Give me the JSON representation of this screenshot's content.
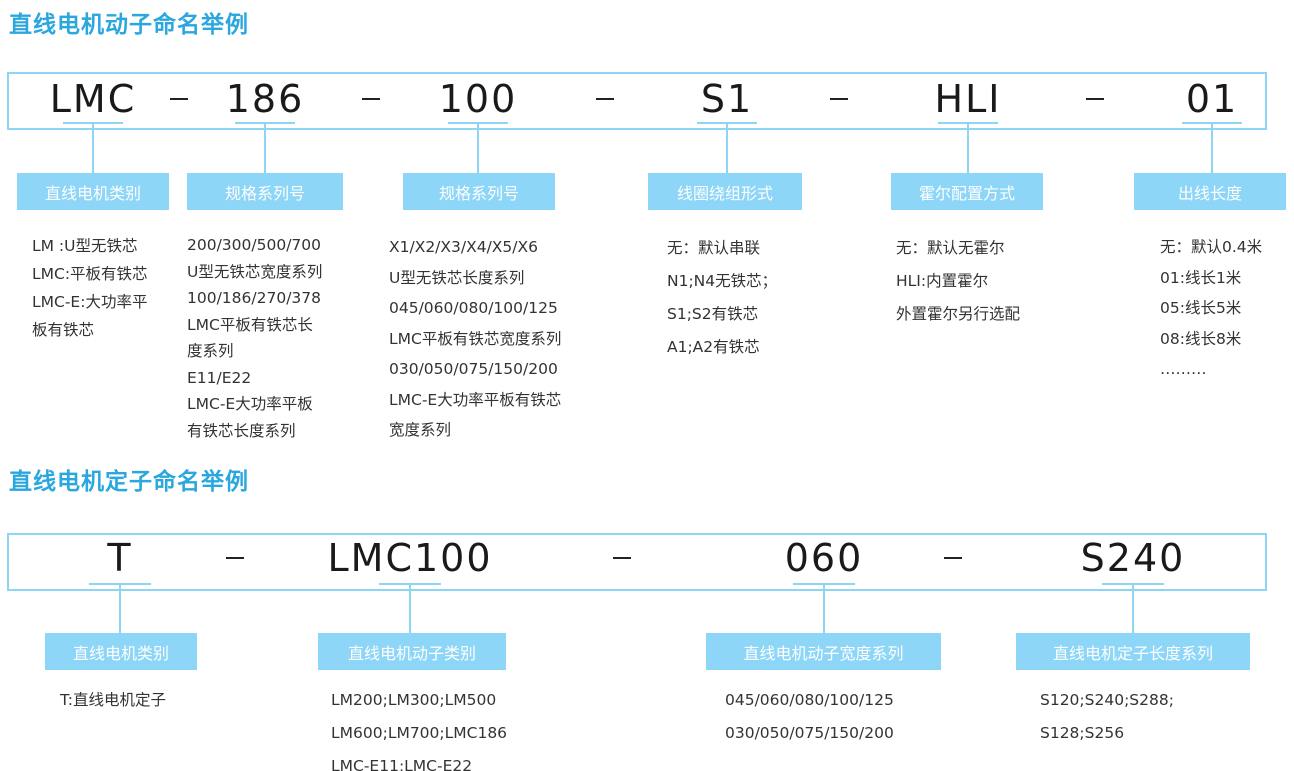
{
  "mover": {
    "title": "直线电机动子命名举例",
    "codes": [
      "LMC",
      "186",
      "100",
      "S1",
      "HLI",
      "01"
    ],
    "fields": [
      {
        "label": "直线电机类别",
        "lines": [
          "LM :U型无铁芯",
          "LMC:平板有铁芯",
          "LMC-E:大功率平",
          "板有铁芯"
        ]
      },
      {
        "label": "规格系列号",
        "lines": [
          "200/300/500/700",
          "U型无铁芯宽度系列",
          "100/186/270/378",
          "LMC平板有铁芯长",
          "度系列",
          "E11/E22",
          "LMC-E大功率平板",
          "有铁芯长度系列"
        ]
      },
      {
        "label": "规格系列号",
        "lines": [
          "X1/X2/X3/X4/X5/X6",
          "U型无铁芯长度系列",
          "045/060/080/100/125",
          "LMC平板有铁芯宽度系列",
          "030/050/075/150/200",
          "LMC-E大功率平板有铁芯",
          "宽度系列"
        ]
      },
      {
        "label": "线圈绕组形式",
        "lines": [
          "无：默认串联",
          "N1;N4无铁芯；",
          "S1;S2有铁芯",
          "A1;A2有铁芯"
        ]
      },
      {
        "label": "霍尔配置方式",
        "lines": [
          "无：默认无霍尔",
          "HLI:内置霍尔",
          "外置霍尔另行选配"
        ]
      },
      {
        "label": "出线长度",
        "lines": [
          "无：默认0.4米",
          "01:线长1米",
          "05:线长5米",
          "08:线长8米",
          "………"
        ]
      }
    ]
  },
  "stator": {
    "title": "直线电机定子命名举例",
    "codes": [
      "T",
      "LMC100",
      "060",
      "S240"
    ],
    "fields": [
      {
        "label": "直线电机类别",
        "lines": [
          "T:直线电机定子"
        ]
      },
      {
        "label": "直线电机动子类别",
        "lines": [
          "LM200;LM300;LM500",
          "LM600;LM700;LMC186",
          "LMC-E11;LMC-E22"
        ]
      },
      {
        "label": "直线电机动子宽度系列",
        "lines": [
          "045/060/080/100/125",
          "030/050/075/150/200"
        ]
      },
      {
        "label": "直线电机定子长度系列",
        "lines": [
          "S120;S240;S288;",
          "S128;S256"
        ]
      }
    ]
  },
  "colors": {
    "title": "#2aa7df",
    "border": "#8ed5f5",
    "label_bg": "#8dd6f7"
  }
}
